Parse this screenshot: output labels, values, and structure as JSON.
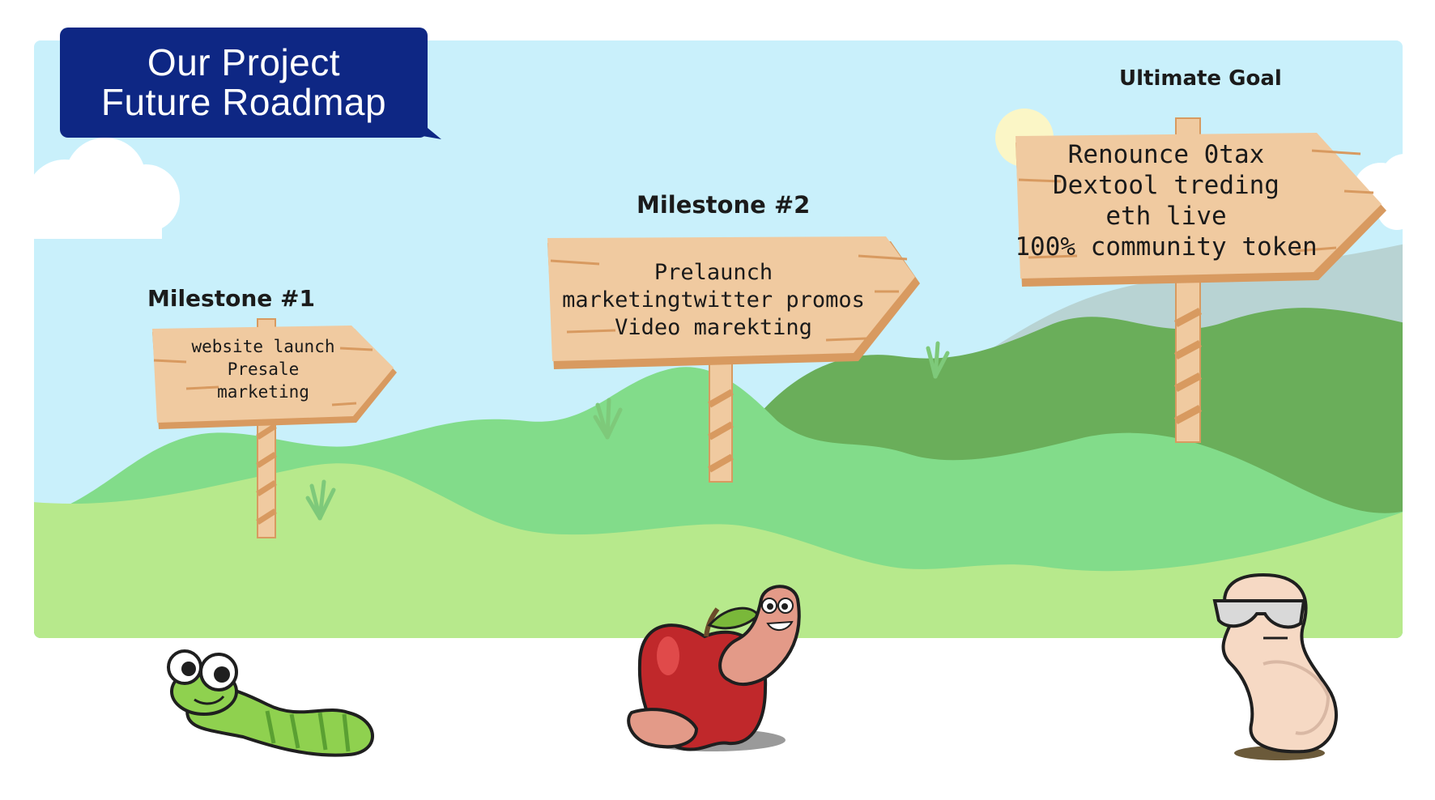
{
  "title": {
    "line1": "Our Project",
    "line2": "Future Roadmap"
  },
  "milestones": [
    {
      "label": "Milestone #1",
      "lines": [
        "website launch",
        "Presale",
        "marketing"
      ]
    },
    {
      "label": "Milestone #2",
      "lines": [
        "Prelaunch",
        "marketingtwitter promos",
        "Video marekting"
      ]
    },
    {
      "label": "Ultimate Goal",
      "lines": [
        "Renounce 0tax",
        "Dextool treding",
        "eth live",
        "100% community token"
      ]
    }
  ],
  "colors": {
    "title_bg": "#0e2784",
    "sky": "#c9f0fb",
    "wood": "#f0caa0",
    "wood_edge": "#d89a60",
    "hill_dark": "#6aae5a",
    "hill_mid": "#82dc8a",
    "ground": "#b7e98c"
  },
  "characters": [
    "green-caterpillar",
    "worm-in-apple",
    "worm-with-sunglasses"
  ]
}
